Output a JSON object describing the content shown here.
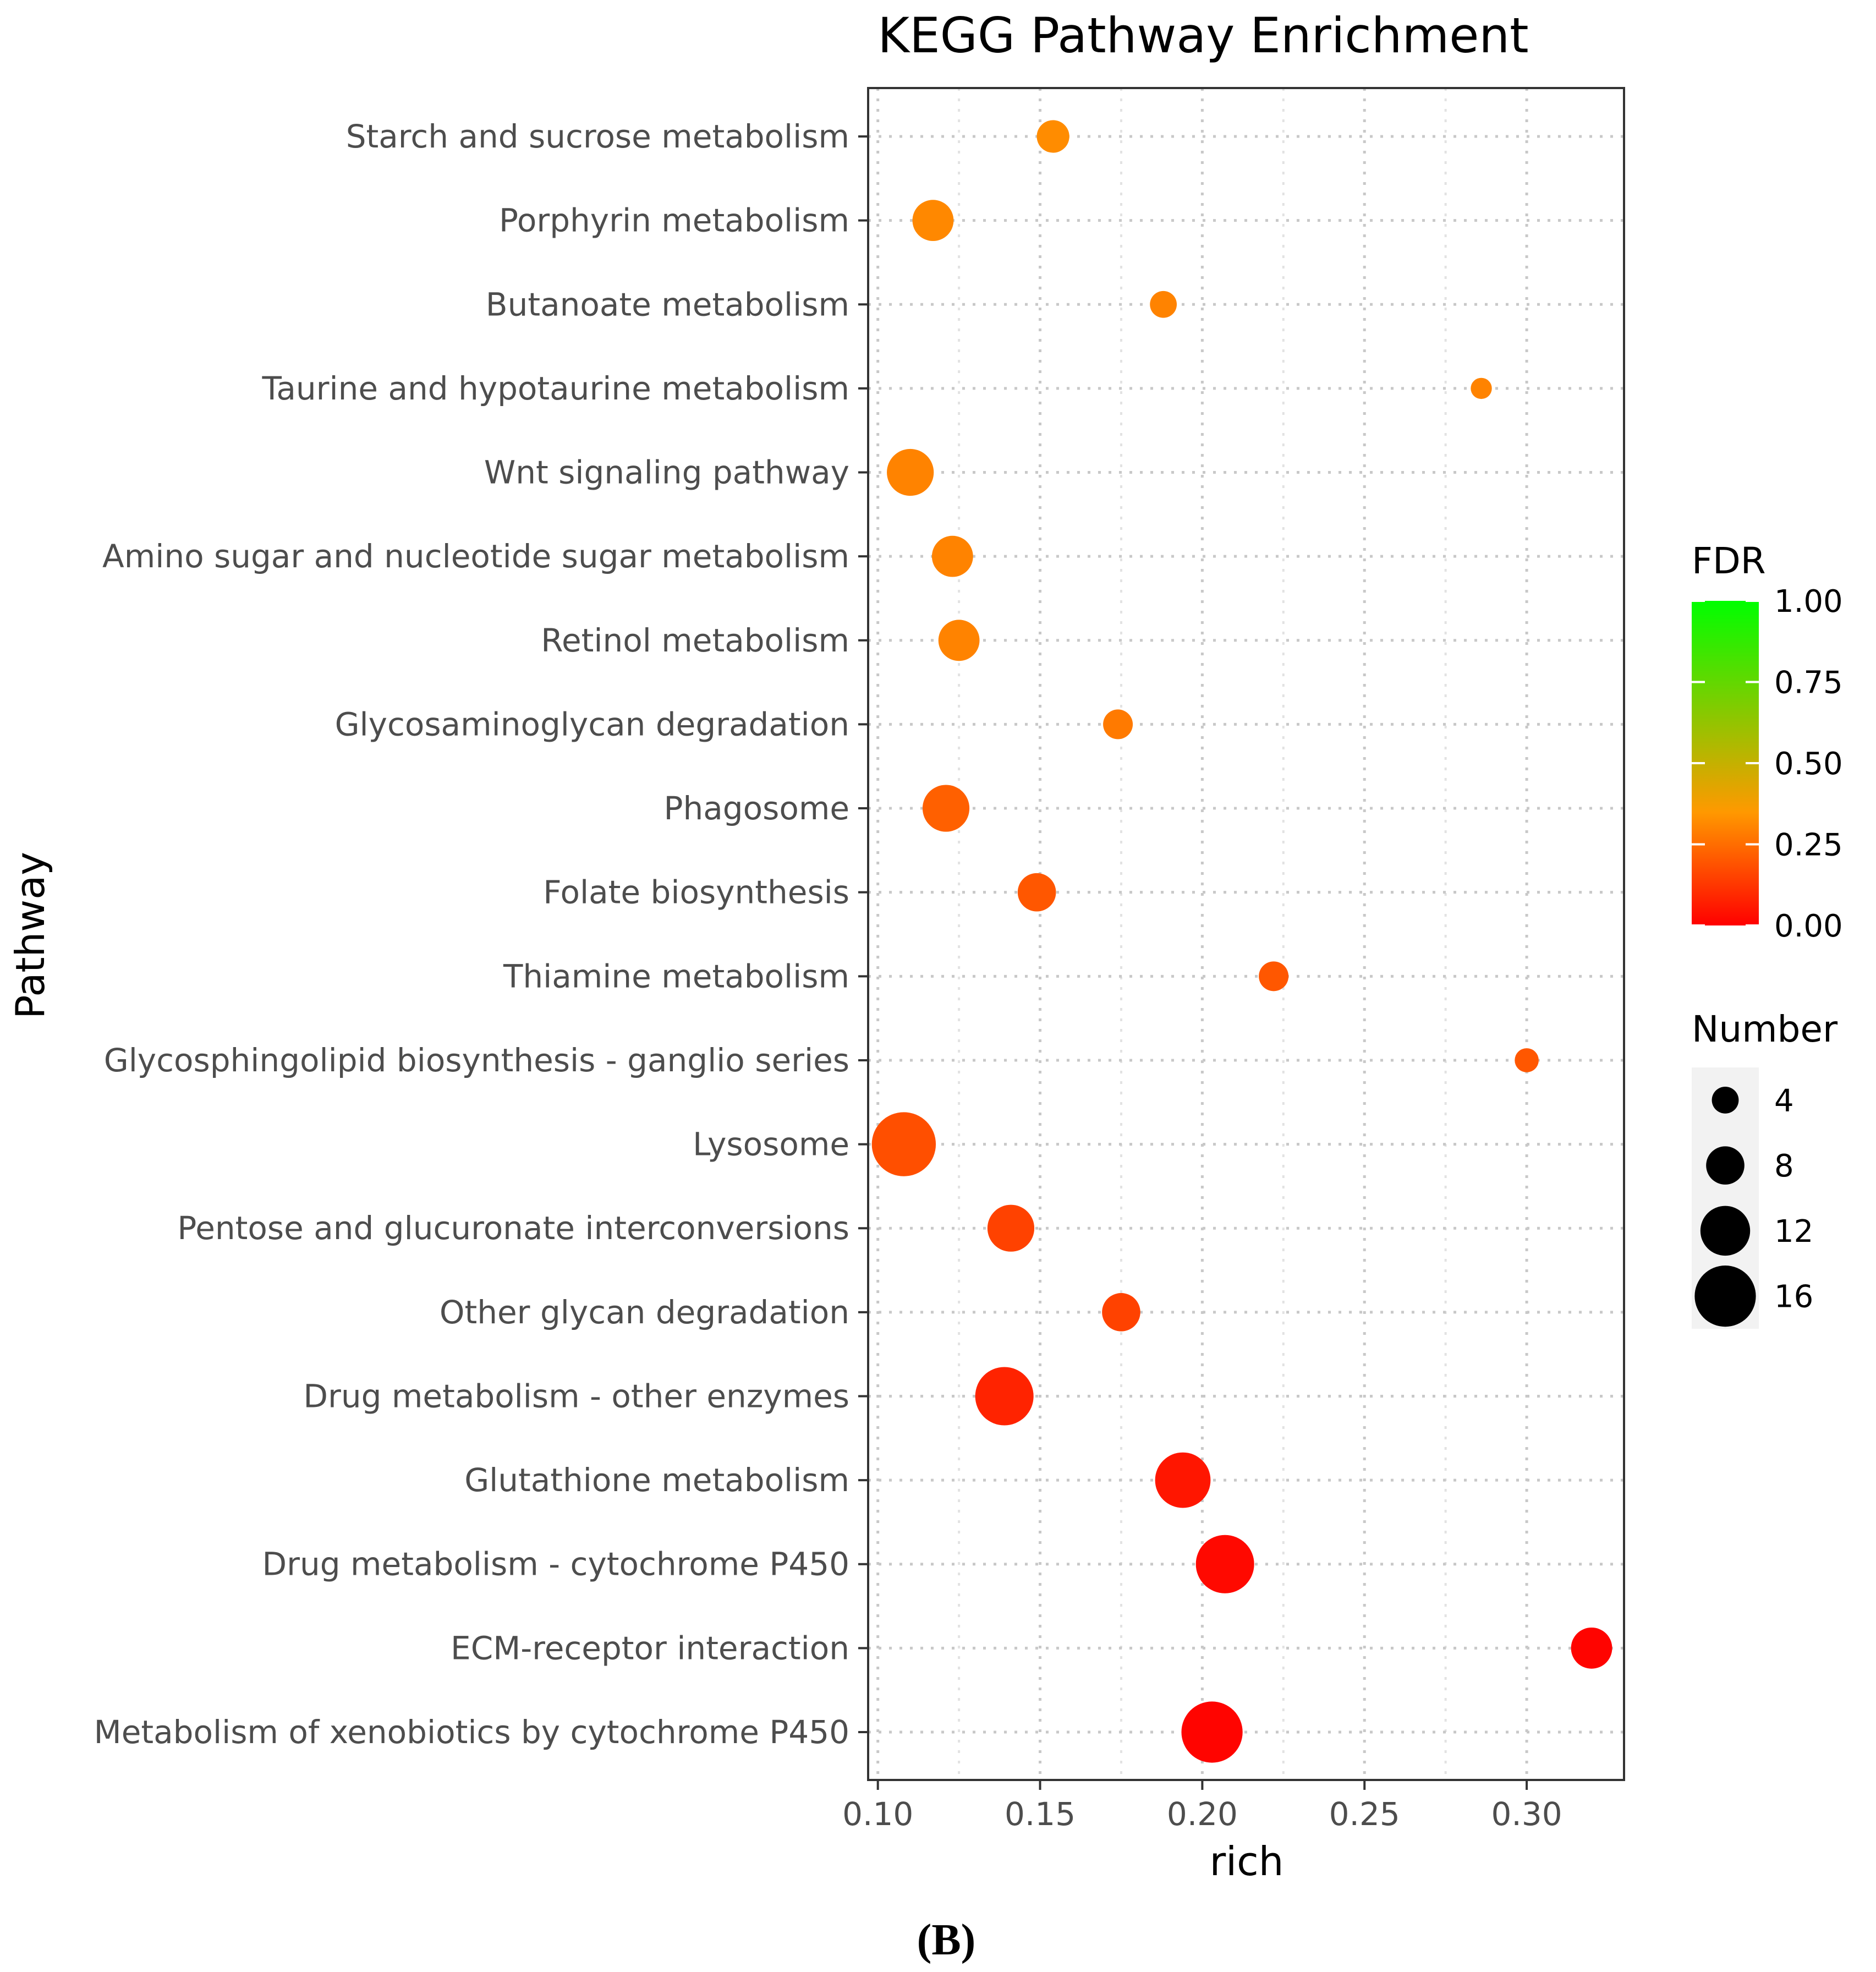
{
  "chart_data": {
    "type": "scatter",
    "title": "KEGG Pathway Enrichment",
    "xlabel": "rich",
    "ylabel": "Pathway",
    "xlim": [
      0.097,
      0.33
    ],
    "x_ticks": [
      0.1,
      0.15,
      0.2,
      0.25,
      0.3
    ],
    "x_tick_labels": [
      "0.10",
      "0.15",
      "0.20",
      "0.25",
      "0.30"
    ],
    "grid": true,
    "panel_label": "(B)",
    "points": [
      {
        "pathway": "Starch and sucrose metabolism",
        "rich": 0.154,
        "fdr": 0.32,
        "number": 6
      },
      {
        "pathway": "Porphyrin metabolism",
        "rich": 0.117,
        "fdr": 0.31,
        "number": 9
      },
      {
        "pathway": "Butanoate metabolism",
        "rich": 0.188,
        "fdr": 0.3,
        "number": 4
      },
      {
        "pathway": "Taurine and hypotaurine metabolism",
        "rich": 0.286,
        "fdr": 0.3,
        "number": 2
      },
      {
        "pathway": "Wnt signaling pathway",
        "rich": 0.11,
        "fdr": 0.3,
        "number": 11
      },
      {
        "pathway": "Amino sugar and nucleotide sugar metabolism",
        "rich": 0.123,
        "fdr": 0.3,
        "number": 9
      },
      {
        "pathway": "Retinol metabolism",
        "rich": 0.125,
        "fdr": 0.3,
        "number": 9
      },
      {
        "pathway": "Glycosaminoglycan degradation",
        "rich": 0.174,
        "fdr": 0.28,
        "number": 5
      },
      {
        "pathway": "Phagosome",
        "rich": 0.121,
        "fdr": 0.22,
        "number": 11
      },
      {
        "pathway": "Folate biosynthesis",
        "rich": 0.149,
        "fdr": 0.2,
        "number": 8
      },
      {
        "pathway": "Thiamine metabolism",
        "rich": 0.222,
        "fdr": 0.2,
        "number": 5
      },
      {
        "pathway": "Glycosphingolipid biosynthesis - ganglio series",
        "rich": 0.3,
        "fdr": 0.2,
        "number": 3
      },
      {
        "pathway": "Lysosome",
        "rich": 0.108,
        "fdr": 0.18,
        "number": 17
      },
      {
        "pathway": "Pentose and glucuronate interconversions",
        "rich": 0.141,
        "fdr": 0.15,
        "number": 11
      },
      {
        "pathway": "Other glycan degradation",
        "rich": 0.175,
        "fdr": 0.15,
        "number": 8
      },
      {
        "pathway": "Drug metabolism - other enzymes",
        "rich": 0.139,
        "fdr": 0.08,
        "number": 15
      },
      {
        "pathway": "Glutathione metabolism",
        "rich": 0.194,
        "fdr": 0.05,
        "number": 14
      },
      {
        "pathway": "Drug metabolism - cytochrome P450",
        "rich": 0.207,
        "fdr": 0.02,
        "number": 15
      },
      {
        "pathway": "ECM-receptor interaction",
        "rich": 0.32,
        "fdr": 0.01,
        "number": 9
      },
      {
        "pathway": "Metabolism of xenobiotics by cytochrome P450",
        "rich": 0.203,
        "fdr": 0.01,
        "number": 16
      }
    ],
    "color_legend": {
      "title": "FDR",
      "min": 0.0,
      "max": 1.0,
      "ticks": [
        0.0,
        0.25,
        0.5,
        0.75,
        1.0
      ],
      "tick_labels": [
        "0.00",
        "0.25",
        "0.50",
        "0.75",
        "1.00"
      ],
      "low_color": "#ff0000",
      "mid_color": "#ff9900",
      "high_color": "#00ff00",
      "placement": "right"
    },
    "size_legend": {
      "title": "Number",
      "values": [
        4,
        8,
        12,
        16
      ],
      "labels": [
        "4",
        "8",
        "12",
        "16"
      ],
      "placement": "right"
    },
    "colors": {
      "panel_border": "#333333",
      "grid": "#c8c8c8",
      "axis_text": "#4d4d4d",
      "title_text": "#000000",
      "size_key_bg": "#f2f2f2",
      "size_key_dot": "#000000"
    }
  }
}
